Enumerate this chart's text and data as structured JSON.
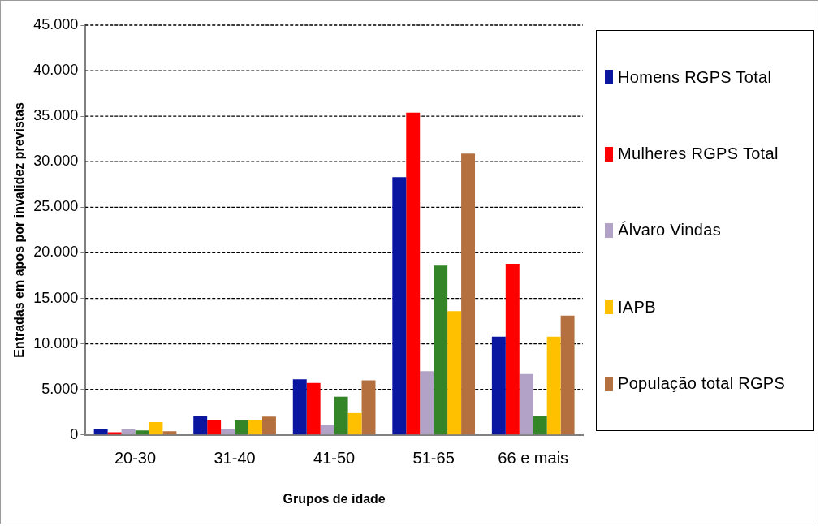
{
  "chart_data": {
    "type": "bar",
    "xlabel": "Grupos de idade",
    "ylabel": "Entradas em apos por invalidez previstas",
    "categories": [
      "20-30",
      "31-40",
      "41-50",
      "51-65",
      "66 e mais"
    ],
    "series": [
      {
        "name": "Homens RGPS Total",
        "color": "#0a16a0",
        "values": [
          600,
          2100,
          6100,
          28300,
          10800
        ]
      },
      {
        "name": "Mulheres RGPS Total",
        "color": "#ff0000",
        "values": [
          300,
          1600,
          5700,
          35400,
          18800
        ]
      },
      {
        "name": "Álvaro Vindas",
        "color": "#b3a2c7",
        "values": [
          600,
          600,
          1100,
          7000,
          6700
        ]
      },
      {
        "color": "#338527",
        "values": [
          500,
          1600,
          4200,
          18600,
          2100
        ]
      },
      {
        "name": "IAPB",
        "color": "#ffc000",
        "values": [
          1400,
          1600,
          2400,
          13600,
          10800
        ]
      },
      {
        "name": "População total RGPS",
        "color": "#b5703f",
        "values": [
          400,
          2000,
          6000,
          30900,
          13100
        ]
      }
    ],
    "ylim": [
      0,
      45000
    ],
    "yticks": [
      0,
      {
        "value": 5000,
        "label": "5.000"
      },
      {
        "value": 10000,
        "label": "10.000"
      },
      {
        "value": 15000,
        "label": "15.000"
      },
      {
        "value": 20000,
        "label": "20.000"
      },
      {
        "value": 25000,
        "label": "25.000"
      },
      {
        "value": 30000,
        "label": "30.000"
      },
      {
        "value": 35000,
        "label": "35.000"
      },
      {
        "value": 40000,
        "label": "40.000"
      },
      {
        "value": 45000,
        "label": "45.000"
      }
    ],
    "grid": "y",
    "legend": "right"
  }
}
